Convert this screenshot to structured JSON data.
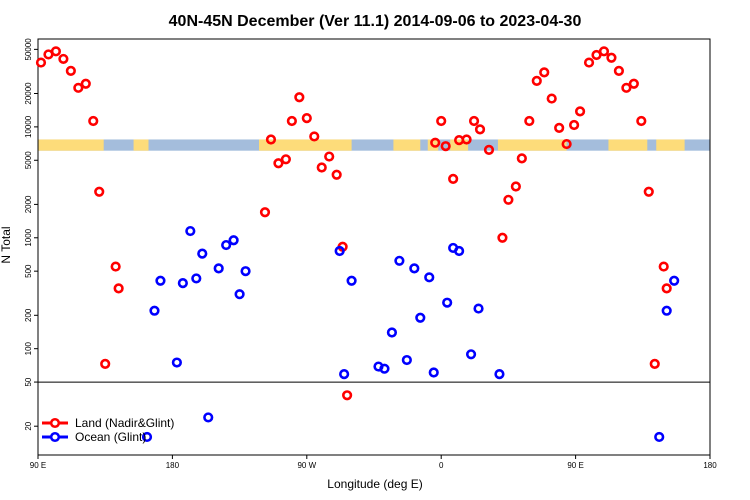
{
  "chart_data": {
    "type": "scatter",
    "title": "40N-45N December (Ver 11.1)   2014-09-06 to 2023-04-30",
    "xlabel": "Longitude (deg E)",
    "ylabel": "N Total",
    "x_axis": {
      "range": [
        90,
        540
      ],
      "ticks": [
        {
          "value": 90,
          "label": "90 E"
        },
        {
          "value": 180,
          "label": "180"
        },
        {
          "value": 270,
          "label": "90 W"
        },
        {
          "value": 360,
          "label": "0"
        },
        {
          "value": 450,
          "label": "90 E"
        },
        {
          "value": 540,
          "label": "180"
        }
      ]
    },
    "y_axis": {
      "scale": "log",
      "range": [
        11,
        62000
      ],
      "break_value": 50,
      "ticks": [
        20,
        50,
        100,
        200,
        500,
        1000,
        2000,
        5000,
        10000,
        20000,
        50000
      ],
      "tick_labels": [
        "20",
        "50",
        "100",
        "200",
        "500",
        "1000",
        "2000",
        "5000",
        "10000",
        "20000",
        "50000"
      ]
    },
    "land_band": {
      "y_range": [
        6100,
        7700
      ],
      "colors": {
        "ocean": "#a4bddc",
        "land": "#fddc7a"
      },
      "land_segments": [
        [
          90,
          134
        ],
        [
          154,
          164
        ],
        [
          238,
          300
        ],
        [
          328,
          346
        ],
        [
          351,
          358
        ],
        [
          366,
          378
        ],
        [
          398,
          444
        ],
        [
          472,
          498
        ],
        [
          504,
          523
        ]
      ]
    },
    "series": [
      {
        "name": "Land (Nadir&Glint)",
        "color": "#ff0000",
        "points": [
          [
            92,
            38000
          ],
          [
            97,
            45000
          ],
          [
            102,
            48000
          ],
          [
            107,
            41000
          ],
          [
            112,
            32000
          ],
          [
            117,
            22500
          ],
          [
            122,
            24500
          ],
          [
            127,
            11300
          ],
          [
            131,
            2600
          ],
          [
            135,
            73
          ],
          [
            142,
            550
          ],
          [
            144,
            350
          ],
          [
            242,
            1700
          ],
          [
            246,
            7700
          ],
          [
            251,
            4700
          ],
          [
            256,
            5100
          ],
          [
            260,
            11300
          ],
          [
            265,
            18500
          ],
          [
            270,
            12000
          ],
          [
            275,
            8200
          ],
          [
            280,
            4300
          ],
          [
            285,
            5400
          ],
          [
            290,
            3700
          ],
          [
            294,
            830
          ],
          [
            297,
            38
          ],
          [
            356,
            7200
          ],
          [
            360,
            11300
          ],
          [
            363,
            6700
          ],
          [
            368,
            3400
          ],
          [
            372,
            7600
          ],
          [
            377,
            7700
          ],
          [
            382,
            11300
          ],
          [
            386,
            9500
          ],
          [
            392,
            6200
          ],
          [
            401,
            1000
          ],
          [
            405,
            2200
          ],
          [
            410,
            2900
          ],
          [
            414,
            5200
          ],
          [
            419,
            11300
          ],
          [
            424,
            26000
          ],
          [
            429,
            31000
          ],
          [
            434,
            18000
          ],
          [
            439,
            9800
          ],
          [
            444,
            7000
          ],
          [
            449,
            10400
          ],
          [
            453,
            13800
          ],
          [
            459,
            38000
          ],
          [
            464,
            44500
          ],
          [
            469,
            48000
          ],
          [
            474,
            42000
          ],
          [
            479,
            32000
          ],
          [
            484,
            22500
          ],
          [
            489,
            24500
          ],
          [
            494,
            11300
          ],
          [
            499,
            2600
          ],
          [
            503,
            73
          ],
          [
            509,
            550
          ],
          [
            511,
            350
          ]
        ]
      },
      {
        "name": "Ocean (Glint)",
        "color": "#0000ff",
        "points": [
          [
            163,
            16
          ],
          [
            168,
            220
          ],
          [
            172,
            410
          ],
          [
            183,
            75
          ],
          [
            187,
            390
          ],
          [
            192,
            1150
          ],
          [
            196,
            430
          ],
          [
            200,
            720
          ],
          [
            204,
            24
          ],
          [
            211,
            530
          ],
          [
            216,
            860
          ],
          [
            221,
            950
          ],
          [
            225,
            310
          ],
          [
            229,
            500
          ],
          [
            292,
            760
          ],
          [
            295,
            59
          ],
          [
            300,
            410
          ],
          [
            318,
            69
          ],
          [
            322,
            66
          ],
          [
            327,
            140
          ],
          [
            332,
            620
          ],
          [
            337,
            79
          ],
          [
            342,
            530
          ],
          [
            346,
            190
          ],
          [
            352,
            440
          ],
          [
            355,
            61
          ],
          [
            364,
            260
          ],
          [
            368,
            810
          ],
          [
            372,
            760
          ],
          [
            380,
            89
          ],
          [
            385,
            230
          ],
          [
            399,
            59
          ],
          [
            506,
            16
          ],
          [
            511,
            220
          ],
          [
            516,
            410
          ]
        ]
      }
    ],
    "legend": {
      "placement": "bottom-left"
    }
  }
}
